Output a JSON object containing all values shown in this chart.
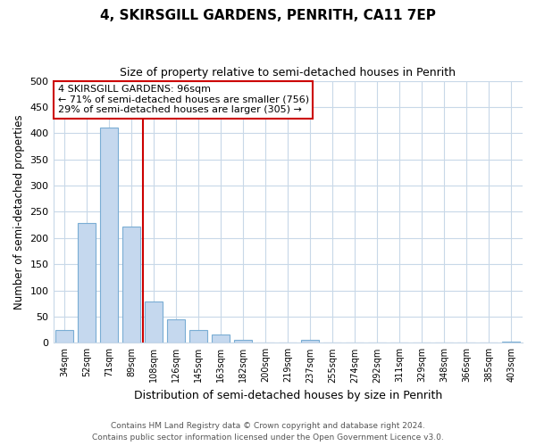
{
  "title": "4, SKIRSGILL GARDENS, PENRITH, CA11 7EP",
  "subtitle": "Size of property relative to semi-detached houses in Penrith",
  "xlabel": "Distribution of semi-detached houses by size in Penrith",
  "ylabel": "Number of semi-detached properties",
  "categories": [
    "34sqm",
    "52sqm",
    "71sqm",
    "89sqm",
    "108sqm",
    "126sqm",
    "145sqm",
    "163sqm",
    "182sqm",
    "200sqm",
    "219sqm",
    "237sqm",
    "255sqm",
    "274sqm",
    "292sqm",
    "311sqm",
    "329sqm",
    "348sqm",
    "366sqm",
    "385sqm",
    "403sqm"
  ],
  "values": [
    25,
    228,
    410,
    222,
    78,
    44,
    25,
    15,
    6,
    0,
    0,
    5,
    0,
    0,
    0,
    0,
    0,
    0,
    0,
    0,
    3
  ],
  "bar_color": "#c5d8ee",
  "bar_edge_color": "#7aadd4",
  "marker_color": "#cc0000",
  "annotation_title": "4 SKIRSGILL GARDENS: 96sqm",
  "annotation_line1": "← 71% of semi-detached houses are smaller (756)",
  "annotation_line2": "29% of semi-detached houses are larger (305) →",
  "ylim": [
    0,
    500
  ],
  "yticks": [
    0,
    50,
    100,
    150,
    200,
    250,
    300,
    350,
    400,
    450,
    500
  ],
  "footer1": "Contains HM Land Registry data © Crown copyright and database right 2024.",
  "footer2": "Contains public sector information licensed under the Open Government Licence v3.0.",
  "bg_color": "#ffffff",
  "grid_color": "#c8d8e8",
  "title_fontsize": 11,
  "subtitle_fontsize": 9
}
